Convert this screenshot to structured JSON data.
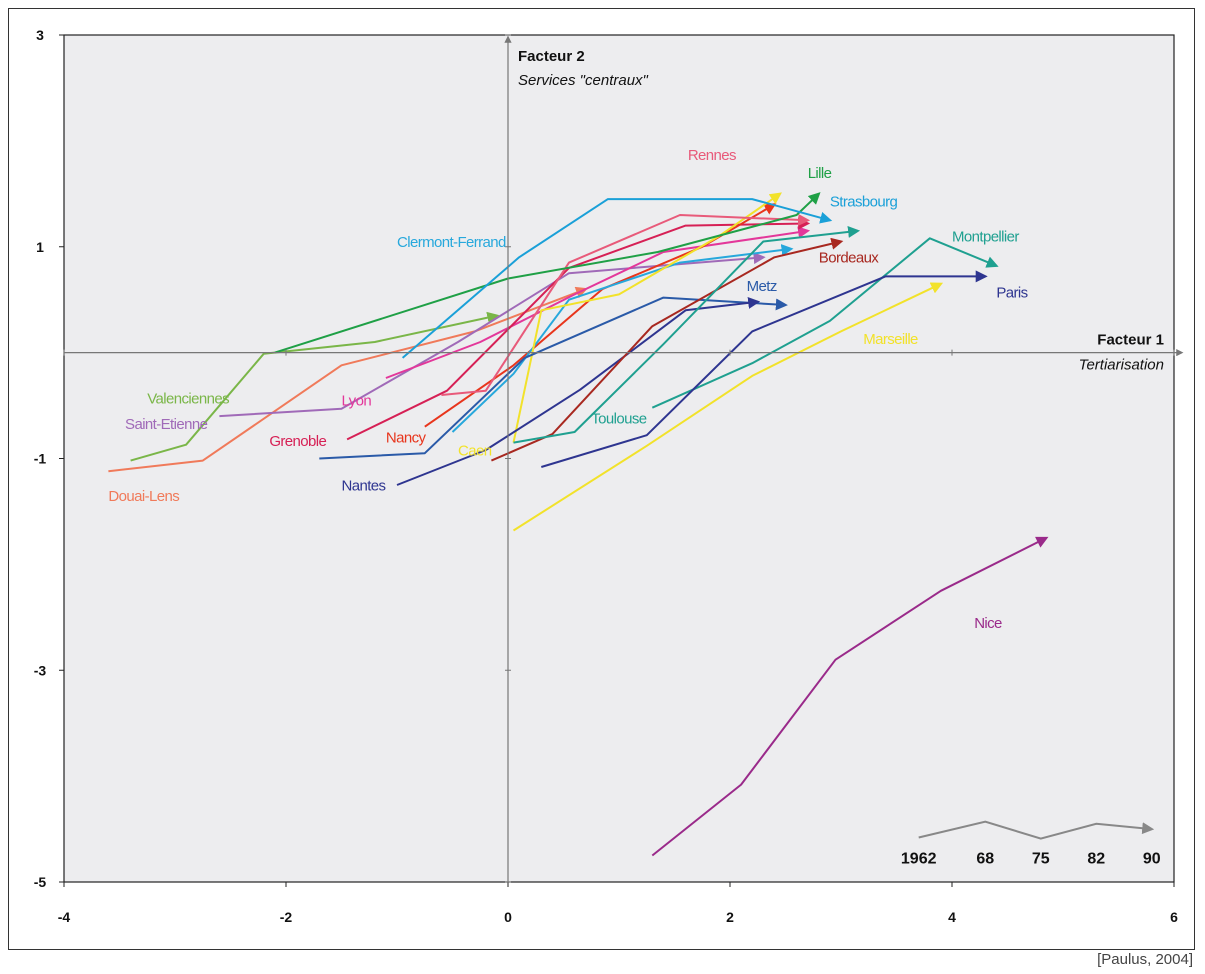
{
  "credit": "[Paulus, 2004]",
  "chart_data": {
    "type": "line",
    "xlabel": "Facteur 1",
    "xlabel_sub": "Tertiarisation",
    "ylabel": "Facteur 2",
    "ylabel_sub": "Services \"centraux\"",
    "xlim": [
      -4,
      6
    ],
    "ylim": [
      -5,
      3
    ],
    "x_ticks": [
      "-4",
      "-2",
      "0",
      "2",
      "4",
      "6"
    ],
    "y_ticks": [
      "3",
      "1",
      "-1",
      "-3",
      "-5"
    ],
    "x_tick_values": [
      -4,
      -2,
      0,
      2,
      4,
      6
    ],
    "y_tick_values": [
      3,
      1,
      -1,
      -3,
      -5
    ],
    "grid": false,
    "years": [
      "1962",
      "68",
      "75",
      "82",
      "90"
    ],
    "years_key_points": [
      [
        3.7,
        -4.58
      ],
      [
        4.3,
        -4.43
      ],
      [
        4.8,
        -4.59
      ],
      [
        5.3,
        -4.45
      ],
      [
        5.8,
        -4.5
      ]
    ],
    "series": [
      {
        "name": "Valenciennes",
        "color": "#7ab648",
        "points": [
          [
            -3.4,
            -1.02
          ],
          [
            -2.9,
            -0.87
          ],
          [
            -2.2,
            -0.01
          ],
          [
            -1.2,
            0.1
          ],
          [
            -0.1,
            0.35
          ]
        ],
        "label_pos": [
          -3.25,
          -0.48
        ]
      },
      {
        "name": "Douai-Lens",
        "color": "#f07a5a",
        "points": [
          [
            -3.6,
            -1.12
          ],
          [
            -2.75,
            -1.02
          ],
          [
            -1.5,
            -0.12
          ],
          [
            -0.3,
            0.2
          ],
          [
            0.7,
            0.6
          ]
        ],
        "label_pos": [
          -3.6,
          -1.4
        ]
      },
      {
        "name": "Saint-Etienne",
        "color": "#a06ab8",
        "points": [
          [
            -2.6,
            -0.6
          ],
          [
            -1.5,
            -0.53
          ],
          [
            -0.45,
            0.1
          ],
          [
            0.55,
            0.75
          ],
          [
            2.3,
            0.9
          ]
        ],
        "label_pos": [
          -3.45,
          -0.72
        ]
      },
      {
        "name": "Lyon",
        "color": "#e3379a",
        "points": [
          [
            -1.1,
            -0.24
          ],
          [
            -0.25,
            0.1
          ],
          [
            0.6,
            0.55
          ],
          [
            1.4,
            0.95
          ],
          [
            2.7,
            1.15
          ]
        ],
        "label_pos": [
          -1.5,
          -0.5
        ]
      },
      {
        "name": "Grenoble",
        "color": "#d62055",
        "points": [
          [
            -1.45,
            -0.82
          ],
          [
            -0.55,
            -0.36
          ],
          [
            0.55,
            0.8
          ],
          [
            1.6,
            1.2
          ],
          [
            2.7,
            1.22
          ]
        ],
        "label_pos": [
          -2.15,
          -0.88
        ]
      },
      {
        "name": "Nancy",
        "color": "#e8351c",
        "points": [
          [
            -0.75,
            -0.7
          ],
          [
            0.05,
            -0.12
          ],
          [
            0.85,
            0.6
          ],
          [
            1.75,
            1.0
          ],
          [
            2.4,
            1.4
          ]
        ],
        "label_pos": [
          -1.1,
          -0.85
        ]
      },
      {
        "name": "Clermont-Ferrand",
        "color": "#27a8dc",
        "points": [
          [
            -0.5,
            -0.75
          ],
          [
            0.05,
            -0.2
          ],
          [
            0.55,
            0.5
          ],
          [
            1.55,
            0.85
          ],
          [
            2.55,
            0.98
          ]
        ],
        "label_pos": [
          -1.0,
          1.0
        ]
      },
      {
        "name": "Caen",
        "color": "#f2e22a",
        "points": [
          [
            0.05,
            -0.85
          ],
          [
            0.3,
            0.4
          ],
          [
            1.0,
            0.55
          ],
          [
            1.9,
            1.1
          ],
          [
            2.45,
            1.5
          ]
        ],
        "label_pos": [
          -0.45,
          -0.97
        ]
      },
      {
        "name": "Rennes",
        "color": "#e85a7a",
        "points": [
          [
            -0.6,
            -0.4
          ],
          [
            -0.2,
            -0.36
          ],
          [
            0.55,
            0.85
          ],
          [
            1.55,
            1.3
          ],
          [
            2.7,
            1.25
          ]
        ],
        "label_pos": [
          1.62,
          1.82
        ]
      },
      {
        "name": "Lille",
        "color": "#1fa046",
        "points": [
          [
            -2.1,
            0.0
          ],
          [
            0.0,
            0.7
          ],
          [
            1.35,
            0.95
          ],
          [
            2.6,
            1.3
          ],
          [
            2.8,
            1.5
          ]
        ],
        "label_pos": [
          2.7,
          1.65
        ]
      },
      {
        "name": "Strasbourg",
        "color": "#1aa0d8",
        "points": [
          [
            -0.95,
            -0.05
          ],
          [
            0.1,
            0.9
          ],
          [
            0.9,
            1.45
          ],
          [
            2.2,
            1.45
          ],
          [
            2.9,
            1.25
          ]
        ],
        "label_pos": [
          2.9,
          1.38
        ]
      },
      {
        "name": "Metz",
        "color": "#2a5aa8",
        "points": [
          [
            -1.7,
            -1.0
          ],
          [
            -0.75,
            -0.95
          ],
          [
            0.15,
            -0.05
          ],
          [
            1.4,
            0.52
          ],
          [
            2.5,
            0.45
          ]
        ],
        "label_pos": [
          2.15,
          0.58
        ]
      },
      {
        "name": "Nantes",
        "color": "#2e3590",
        "points": [
          [
            -1.0,
            -1.25
          ],
          [
            -0.2,
            -0.92
          ],
          [
            0.65,
            -0.35
          ],
          [
            1.6,
            0.4
          ],
          [
            2.25,
            0.48
          ]
        ],
        "label_pos": [
          -1.5,
          -1.3
        ]
      },
      {
        "name": "Bordeaux",
        "color": "#a82820",
        "points": [
          [
            -0.15,
            -1.02
          ],
          [
            0.4,
            -0.77
          ],
          [
            1.3,
            0.25
          ],
          [
            2.4,
            0.9
          ],
          [
            3.0,
            1.05
          ]
        ],
        "label_pos": [
          2.8,
          0.85
        ]
      },
      {
        "name": "Toulouse",
        "color": "#1fa090",
        "points": [
          [
            0.05,
            -0.85
          ],
          [
            0.6,
            -0.75
          ],
          [
            1.4,
            0.08
          ],
          [
            2.3,
            1.05
          ],
          [
            3.15,
            1.15
          ]
        ],
        "label_pos": [
          0.75,
          -0.67
        ]
      },
      {
        "name": "Montpellier",
        "color": "#1fa090",
        "points": [
          [
            1.3,
            -0.52
          ],
          [
            2.2,
            -0.1
          ],
          [
            2.9,
            0.3
          ],
          [
            3.8,
            1.08
          ],
          [
            4.4,
            0.82
          ]
        ],
        "label_pos": [
          4.0,
          1.05
        ]
      },
      {
        "name": "Paris",
        "color": "#2e3590",
        "points": [
          [
            0.3,
            -1.08
          ],
          [
            1.25,
            -0.78
          ],
          [
            2.2,
            0.2
          ],
          [
            3.4,
            0.72
          ],
          [
            4.3,
            0.72
          ]
        ],
        "label_pos": [
          4.4,
          0.52
        ]
      },
      {
        "name": "Marseille",
        "color": "#f2e22a",
        "points": [
          [
            0.05,
            -1.68
          ],
          [
            1.25,
            -0.88
          ],
          [
            2.2,
            -0.22
          ],
          [
            3.0,
            0.2
          ],
          [
            3.9,
            0.65
          ]
        ],
        "label_pos": [
          3.2,
          0.08
        ]
      },
      {
        "name": "Nice",
        "color": "#9a2a8a",
        "points": [
          [
            1.3,
            -4.75
          ],
          [
            2.1,
            -4.08
          ],
          [
            2.95,
            -2.9
          ],
          [
            3.9,
            -2.25
          ],
          [
            4.85,
            -1.75
          ]
        ],
        "label_pos": [
          4.2,
          -2.6
        ]
      }
    ]
  }
}
